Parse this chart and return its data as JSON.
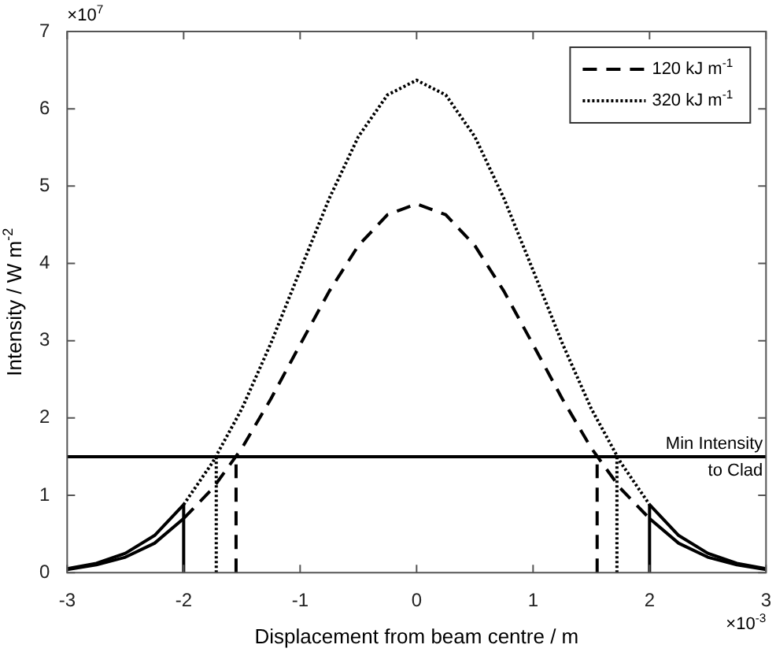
{
  "chart_data": {
    "type": "line",
    "xlabel": "Displacement from beam centre / m",
    "ylabel": "Intensity / W m$^{-2}$",
    "xlim": [
      -3,
      3
    ],
    "xticks": [
      -3,
      -2,
      -1,
      0,
      1,
      2,
      3
    ],
    "ylim": [
      0,
      7
    ],
    "yticks": [
      0,
      1,
      2,
      3,
      4,
      5,
      6,
      7
    ],
    "grid": false,
    "legend": "top right",
    "marker": "none",
    "annotations": [
      "×10$^{7}$",
      "×10$^{-3}$"
    ],
    "ref_lines": [
      {
        "axis": "y",
        "value": 1.5,
        "label": "Min Intensity to Clad",
        "color": "#000000"
      }
    ],
    "series": [
      {
        "name": "120 kJ m$^{-1}$",
        "color": "#000000",
        "line_style": "dashed",
        "x": [
          -2,
          -1.75,
          -1.5,
          -1.25,
          -1,
          -0.75,
          -0.5,
          -0.25,
          0,
          0.25,
          0.5,
          0.75,
          1,
          1.25,
          1.5,
          1.75,
          2
        ],
        "values": [
          0.7,
          1.09,
          1.61,
          2.25,
          2.95,
          3.64,
          4.23,
          4.63,
          4.77,
          4.63,
          4.23,
          3.64,
          2.95,
          2.25,
          1.61,
          1.09,
          0.7
        ]
      },
      {
        "name": "320 kJ m$^{-1}$",
        "color": "#000000",
        "line_style": "dotted",
        "x": [
          -2,
          -1.75,
          -1.5,
          -1.25,
          -1,
          -0.75,
          -0.5,
          -0.25,
          0,
          0.25,
          0.5,
          0.75,
          1,
          1.25,
          1.5,
          1.75,
          2
        ],
        "values": [
          0.88,
          1.43,
          2.12,
          2.97,
          3.91,
          4.84,
          5.64,
          6.18,
          6.37,
          6.18,
          5.64,
          4.84,
          3.91,
          2.97,
          2.12,
          1.43,
          0.88
        ]
      },
      {
        "color": "#000000",
        "line_style": "solid",
        "x": [
          -3,
          -2.75,
          -2.5,
          -2.25,
          -2
        ],
        "values": [
          0.05,
          0.12,
          0.25,
          0.48,
          0.88
        ]
      },
      {
        "color": "#000000",
        "line_style": "solid",
        "x": [
          -3,
          -2.75,
          -2.5,
          -2.25,
          -2
        ],
        "values": [
          0.04,
          0.1,
          0.2,
          0.38,
          0.7
        ]
      },
      {
        "color": "#000000",
        "line_style": "solid",
        "x": [
          2,
          2.25,
          2.5,
          2.75,
          3
        ],
        "values": [
          0.88,
          0.48,
          0.25,
          0.12,
          0.05
        ]
      },
      {
        "color": "#000000",
        "line_style": "solid",
        "x": [
          2,
          2.25,
          2.5,
          2.75,
          3
        ],
        "values": [
          0.7,
          0.38,
          0.2,
          0.1,
          0.04
        ]
      },
      {
        "color": "#000000",
        "line_style": "solid",
        "x": [
          -2,
          -2
        ],
        "values": [
          0,
          0.88
        ]
      },
      {
        "color": "#000000",
        "line_style": "solid",
        "x": [
          2,
          2
        ],
        "values": [
          0,
          0.88
        ]
      },
      {
        "color": "#000000",
        "line_style": "dashed",
        "x": [
          -1.55,
          -1.55
        ],
        "values": [
          0,
          1.4
        ]
      },
      {
        "color": "#000000",
        "line_style": "dashed",
        "x": [
          1.55,
          1.55
        ],
        "values": [
          0,
          1.4
        ]
      },
      {
        "color": "#000000",
        "line_style": "dotted",
        "x": [
          -1.72,
          -1.72
        ],
        "values": [
          0,
          1.5
        ]
      },
      {
        "color": "#000000",
        "line_style": "dotted",
        "x": [
          1.72,
          1.72
        ],
        "values": [
          0,
          1.5
        ]
      }
    ]
  }
}
